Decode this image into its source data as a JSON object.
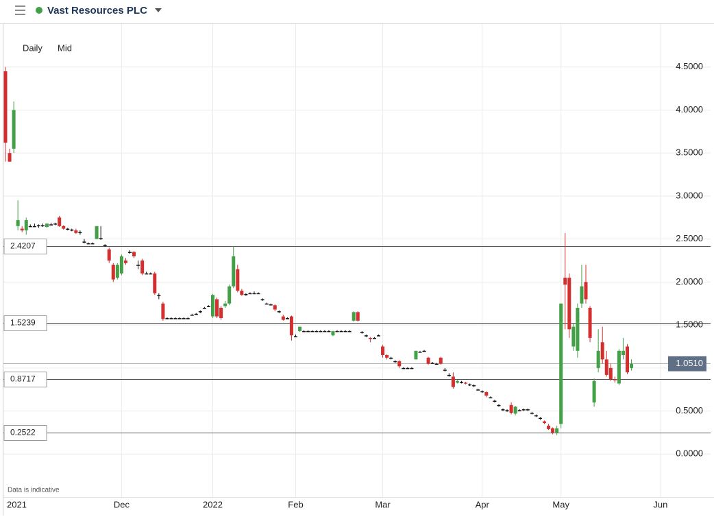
{
  "chart_data": {
    "type": "candlestick",
    "title": "Vast Resources PLC",
    "interval": "Daily",
    "price_type": "Mid",
    "note": "Data is indicative",
    "up_color": "#43a047",
    "down_color": "#d32f2f",
    "flat_color": "#111111",
    "grid": true,
    "ylim": [
      -0.5,
      5.0
    ],
    "yticks": [
      {
        "value": 0,
        "label": "0.0000"
      },
      {
        "value": 0.5,
        "label": "0.5000"
      },
      {
        "value": 1,
        "label": "1.0000"
      },
      {
        "value": 1.5,
        "label": "1.5000"
      },
      {
        "value": 2,
        "label": "2.0000"
      },
      {
        "value": 2.5,
        "label": "2.5000"
      },
      {
        "value": 3,
        "label": "3.0000"
      },
      {
        "value": 3.5,
        "label": "3.5000"
      },
      {
        "value": 4,
        "label": "4.0000"
      },
      {
        "value": 4.5,
        "label": "4.5000"
      }
    ],
    "price_lines": [
      2.4207,
      1.5239,
      0.8717,
      0.2522
    ],
    "last_price": {
      "value": 1.051,
      "label": "1.0510"
    },
    "categories": [
      null,
      null,
      null,
      "2021",
      null,
      null,
      null,
      null,
      null,
      null,
      null,
      null,
      null,
      null,
      null,
      null,
      null,
      null,
      null,
      null,
      null,
      null,
      null,
      null,
      null,
      null,
      null,
      null,
      "Dec",
      null,
      null,
      null,
      null,
      null,
      null,
      null,
      null,
      null,
      null,
      null,
      null,
      null,
      null,
      null,
      null,
      null,
      null,
      null,
      null,
      null,
      "2022",
      null,
      null,
      null,
      null,
      null,
      null,
      null,
      null,
      null,
      null,
      null,
      null,
      null,
      null,
      null,
      null,
      null,
      null,
      null,
      "Feb",
      null,
      null,
      null,
      null,
      null,
      null,
      null,
      null,
      null,
      null,
      null,
      null,
      null,
      null,
      null,
      null,
      null,
      null,
      null,
      null,
      "Mar",
      null,
      null,
      null,
      null,
      null,
      null,
      null,
      null,
      null,
      null,
      null,
      null,
      null,
      null,
      null,
      null,
      null,
      null,
      null,
      null,
      null,
      null,
      null,
      "Apr",
      null,
      null,
      null,
      null,
      null,
      null,
      null,
      null,
      null,
      null,
      null,
      null,
      null,
      null,
      null,
      null,
      null,
      null,
      "May",
      null,
      null,
      null,
      null,
      null,
      null,
      null,
      null,
      null,
      null,
      null,
      null,
      null,
      null,
      null,
      null,
      null,
      null,
      null,
      null,
      null,
      null,
      null,
      "Jun"
    ],
    "ohlc": [
      [
        4.45,
        4.5,
        3.4,
        3.62
      ],
      [
        3.5,
        3.55,
        3.4,
        3.4
      ],
      [
        3.55,
        4.1,
        3.5,
        4.0
      ],
      [
        2.65,
        2.95,
        2.6,
        2.72
      ],
      [
        2.62,
        2.65,
        2.58,
        2.6
      ],
      [
        2.6,
        2.75,
        2.55,
        2.72
      ],
      [
        2.65,
        2.67,
        2.64,
        2.65
      ],
      [
        2.65,
        2.68,
        2.64,
        2.65
      ],
      [
        2.66,
        2.67,
        2.63,
        2.66
      ],
      [
        2.66,
        2.68,
        2.64,
        2.66
      ],
      [
        2.64,
        2.68,
        2.63,
        2.68
      ],
      [
        2.67,
        2.69,
        2.66,
        2.67
      ],
      [
        2.68,
        2.69,
        2.66,
        2.68
      ],
      [
        2.75,
        2.77,
        2.64,
        2.65
      ],
      [
        2.65,
        2.66,
        2.61,
        2.62
      ],
      [
        2.62,
        2.63,
        2.6,
        2.62
      ],
      [
        2.61,
        2.62,
        2.59,
        2.61
      ],
      [
        2.6,
        2.62,
        2.56,
        2.57
      ],
      [
        2.58,
        2.6,
        2.55,
        2.58
      ],
      [
        2.47,
        2.5,
        2.45,
        2.47
      ],
      [
        2.45,
        2.46,
        2.44,
        2.45
      ],
      [
        2.45,
        2.46,
        2.44,
        2.45
      ],
      [
        2.5,
        2.65,
        2.5,
        2.65
      ],
      [
        2.51,
        2.65,
        2.49,
        2.51
      ],
      [
        2.43,
        2.44,
        2.41,
        2.43
      ],
      [
        2.38,
        2.4,
        2.22,
        2.25
      ],
      [
        2.2,
        2.22,
        2.0,
        2.03
      ],
      [
        2.05,
        2.22,
        2.03,
        2.2
      ],
      [
        2.1,
        2.32,
        2.08,
        2.3
      ],
      [
        2.25,
        2.28,
        2.2,
        2.22
      ],
      [
        2.35,
        2.37,
        2.33,
        2.35
      ],
      [
        2.35,
        2.36,
        2.28,
        2.3
      ],
      [
        2.2,
        2.25,
        2.15,
        2.2
      ],
      [
        2.25,
        2.27,
        2.08,
        2.1
      ],
      [
        2.1,
        2.12,
        2.09,
        2.1
      ],
      [
        2.1,
        2.11,
        2.09,
        2.1
      ],
      [
        2.1,
        2.12,
        1.85,
        1.87
      ],
      [
        1.85,
        1.87,
        1.8,
        1.85
      ],
      [
        1.75,
        1.77,
        1.55,
        1.57
      ],
      [
        1.58,
        1.59,
        1.57,
        1.58
      ],
      [
        1.58,
        1.59,
        1.57,
        1.58
      ],
      [
        1.58,
        1.59,
        1.57,
        1.58
      ],
      [
        1.58,
        1.59,
        1.57,
        1.58
      ],
      [
        1.58,
        1.59,
        1.57,
        1.58
      ],
      [
        1.58,
        1.59,
        1.57,
        1.58
      ],
      [
        1.62,
        1.63,
        1.61,
        1.62
      ],
      [
        1.63,
        1.64,
        1.62,
        1.63
      ],
      [
        1.66,
        1.67,
        1.64,
        1.66
      ],
      [
        1.7,
        1.71,
        1.69,
        1.7
      ],
      [
        1.72,
        1.73,
        1.71,
        1.72
      ],
      [
        1.6,
        1.86,
        1.58,
        1.85
      ],
      [
        1.8,
        1.82,
        1.58,
        1.6
      ],
      [
        1.7,
        1.72,
        1.56,
        1.58
      ],
      [
        1.72,
        1.78,
        1.7,
        1.75
      ],
      [
        1.75,
        1.97,
        1.73,
        1.95
      ],
      [
        1.95,
        2.42,
        1.93,
        2.3
      ],
      [
        2.15,
        2.2,
        1.88,
        1.9
      ],
      [
        1.9,
        1.92,
        1.84,
        1.85
      ],
      [
        1.86,
        1.87,
        1.84,
        1.86
      ],
      [
        1.87,
        1.88,
        1.86,
        1.87
      ],
      [
        1.87,
        1.89,
        1.86,
        1.87
      ],
      [
        1.87,
        1.88,
        1.86,
        1.87
      ],
      [
        1.8,
        1.81,
        1.78,
        1.8
      ],
      [
        1.75,
        1.76,
        1.74,
        1.75
      ],
      [
        1.74,
        1.75,
        1.73,
        1.74
      ],
      [
        1.73,
        1.74,
        1.66,
        1.68
      ],
      [
        1.66,
        1.67,
        1.64,
        1.66
      ],
      [
        1.6,
        1.62,
        1.55,
        1.56
      ],
      [
        1.58,
        1.59,
        1.57,
        1.58
      ],
      [
        1.6,
        1.61,
        1.32,
        1.38
      ],
      [
        1.37,
        1.39,
        1.36,
        1.37
      ],
      [
        1.43,
        1.48,
        1.42,
        1.48
      ],
      [
        1.43,
        1.44,
        1.42,
        1.43
      ],
      [
        1.43,
        1.44,
        1.42,
        1.43
      ],
      [
        1.43,
        1.44,
        1.42,
        1.43
      ],
      [
        1.43,
        1.44,
        1.42,
        1.43
      ],
      [
        1.43,
        1.44,
        1.42,
        1.43
      ],
      [
        1.43,
        1.44,
        1.42,
        1.43
      ],
      [
        1.43,
        1.44,
        1.42,
        1.43
      ],
      [
        1.38,
        1.43,
        1.37,
        1.43
      ],
      [
        1.43,
        1.44,
        1.42,
        1.43
      ],
      [
        1.43,
        1.44,
        1.42,
        1.43
      ],
      [
        1.43,
        1.44,
        1.42,
        1.43
      ],
      [
        1.43,
        1.44,
        1.42,
        1.43
      ],
      [
        1.55,
        1.66,
        1.54,
        1.65
      ],
      [
        1.65,
        1.66,
        1.54,
        1.55
      ],
      [
        1.42,
        1.43,
        1.4,
        1.42
      ],
      [
        1.38,
        1.39,
        1.36,
        1.38
      ],
      [
        1.35,
        1.36,
        1.3,
        1.34
      ],
      [
        1.35,
        1.36,
        1.34,
        1.35
      ],
      [
        1.38,
        1.39,
        1.37,
        1.38
      ],
      [
        1.25,
        1.27,
        1.12,
        1.15
      ],
      [
        1.15,
        1.16,
        1.1,
        1.12
      ],
      [
        1.12,
        1.13,
        1.1,
        1.12
      ],
      [
        1.08,
        1.09,
        1.06,
        1.08
      ],
      [
        1.08,
        1.09,
        1.0,
        1.02
      ],
      [
        1.0,
        1.01,
        0.99,
        1.0
      ],
      [
        1.0,
        1.01,
        0.99,
        1.0
      ],
      [
        1.0,
        1.01,
        0.99,
        1.0
      ],
      [
        1.1,
        1.2,
        1.1,
        1.2
      ],
      [
        1.19,
        1.2,
        1.18,
        1.19
      ],
      [
        1.2,
        1.21,
        1.19,
        1.2
      ],
      [
        1.12,
        1.13,
        1.04,
        1.05
      ],
      [
        1.06,
        1.07,
        1.05,
        1.06
      ],
      [
        1.05,
        1.06,
        1.04,
        1.05
      ],
      [
        1.12,
        1.13,
        1.04,
        1.05
      ],
      [
        0.98,
        1.0,
        0.96,
        0.98
      ],
      [
        0.92,
        0.94,
        0.9,
        0.92
      ],
      [
        0.9,
        0.95,
        0.76,
        0.78
      ],
      [
        0.83,
        0.86,
        0.82,
        0.85
      ],
      [
        0.84,
        0.85,
        0.82,
        0.84
      ],
      [
        0.83,
        0.84,
        0.81,
        0.82
      ],
      [
        0.81,
        0.82,
        0.79,
        0.81
      ],
      [
        0.8,
        0.81,
        0.78,
        0.8
      ],
      [
        0.75,
        0.76,
        0.74,
        0.75
      ],
      [
        0.73,
        0.74,
        0.71,
        0.73
      ],
      [
        0.72,
        0.73,
        0.66,
        0.68
      ],
      [
        0.66,
        0.67,
        0.65,
        0.66
      ],
      [
        0.62,
        0.63,
        0.6,
        0.62
      ],
      [
        0.57,
        0.58,
        0.55,
        0.57
      ],
      [
        0.52,
        0.53,
        0.5,
        0.52
      ],
      [
        0.51,
        0.52,
        0.49,
        0.51
      ],
      [
        0.57,
        0.6,
        0.46,
        0.48
      ],
      [
        0.47,
        0.56,
        0.45,
        0.55
      ],
      [
        0.51,
        0.52,
        0.5,
        0.51
      ],
      [
        0.52,
        0.53,
        0.5,
        0.52
      ],
      [
        0.52,
        0.53,
        0.5,
        0.52
      ],
      [
        0.48,
        0.49,
        0.46,
        0.48
      ],
      [
        0.45,
        0.46,
        0.43,
        0.45
      ],
      [
        0.42,
        0.43,
        0.4,
        0.42
      ],
      [
        0.38,
        0.39,
        0.35,
        0.36
      ],
      [
        0.33,
        0.35,
        0.28,
        0.29
      ],
      [
        0.3,
        0.31,
        0.23,
        0.25
      ],
      [
        0.25,
        0.33,
        0.22,
        0.3
      ],
      [
        0.35,
        1.75,
        0.3,
        1.75
      ],
      [
        2.05,
        2.57,
        1.45,
        1.97
      ],
      [
        2.05,
        2.1,
        1.35,
        1.45
      ],
      [
        1.25,
        1.52,
        1.2,
        1.48
      ],
      [
        1.2,
        1.75,
        1.12,
        1.7
      ],
      [
        1.75,
        2.2,
        1.7,
        1.95
      ],
      [
        2.0,
        2.2,
        1.75,
        1.8
      ],
      [
        1.7,
        1.72,
        1.3,
        1.35
      ],
      [
        0.6,
        0.88,
        0.55,
        0.85
      ],
      [
        1.0,
        1.45,
        0.95,
        1.2
      ],
      [
        1.3,
        1.48,
        1.05,
        1.1
      ],
      [
        1.1,
        1.2,
        0.9,
        0.92
      ],
      [
        1.0,
        1.05,
        0.85,
        0.87
      ],
      [
        0.87,
        0.9,
        0.83,
        0.86
      ],
      [
        0.82,
        1.22,
        0.8,
        1.2
      ],
      [
        1.15,
        1.35,
        1.1,
        1.2
      ],
      [
        1.25,
        1.28,
        0.93,
        0.95
      ],
      [
        1.0,
        1.1,
        0.97,
        1.05
      ],
      null,
      null,
      null,
      null,
      null,
      null,
      null
    ]
  }
}
